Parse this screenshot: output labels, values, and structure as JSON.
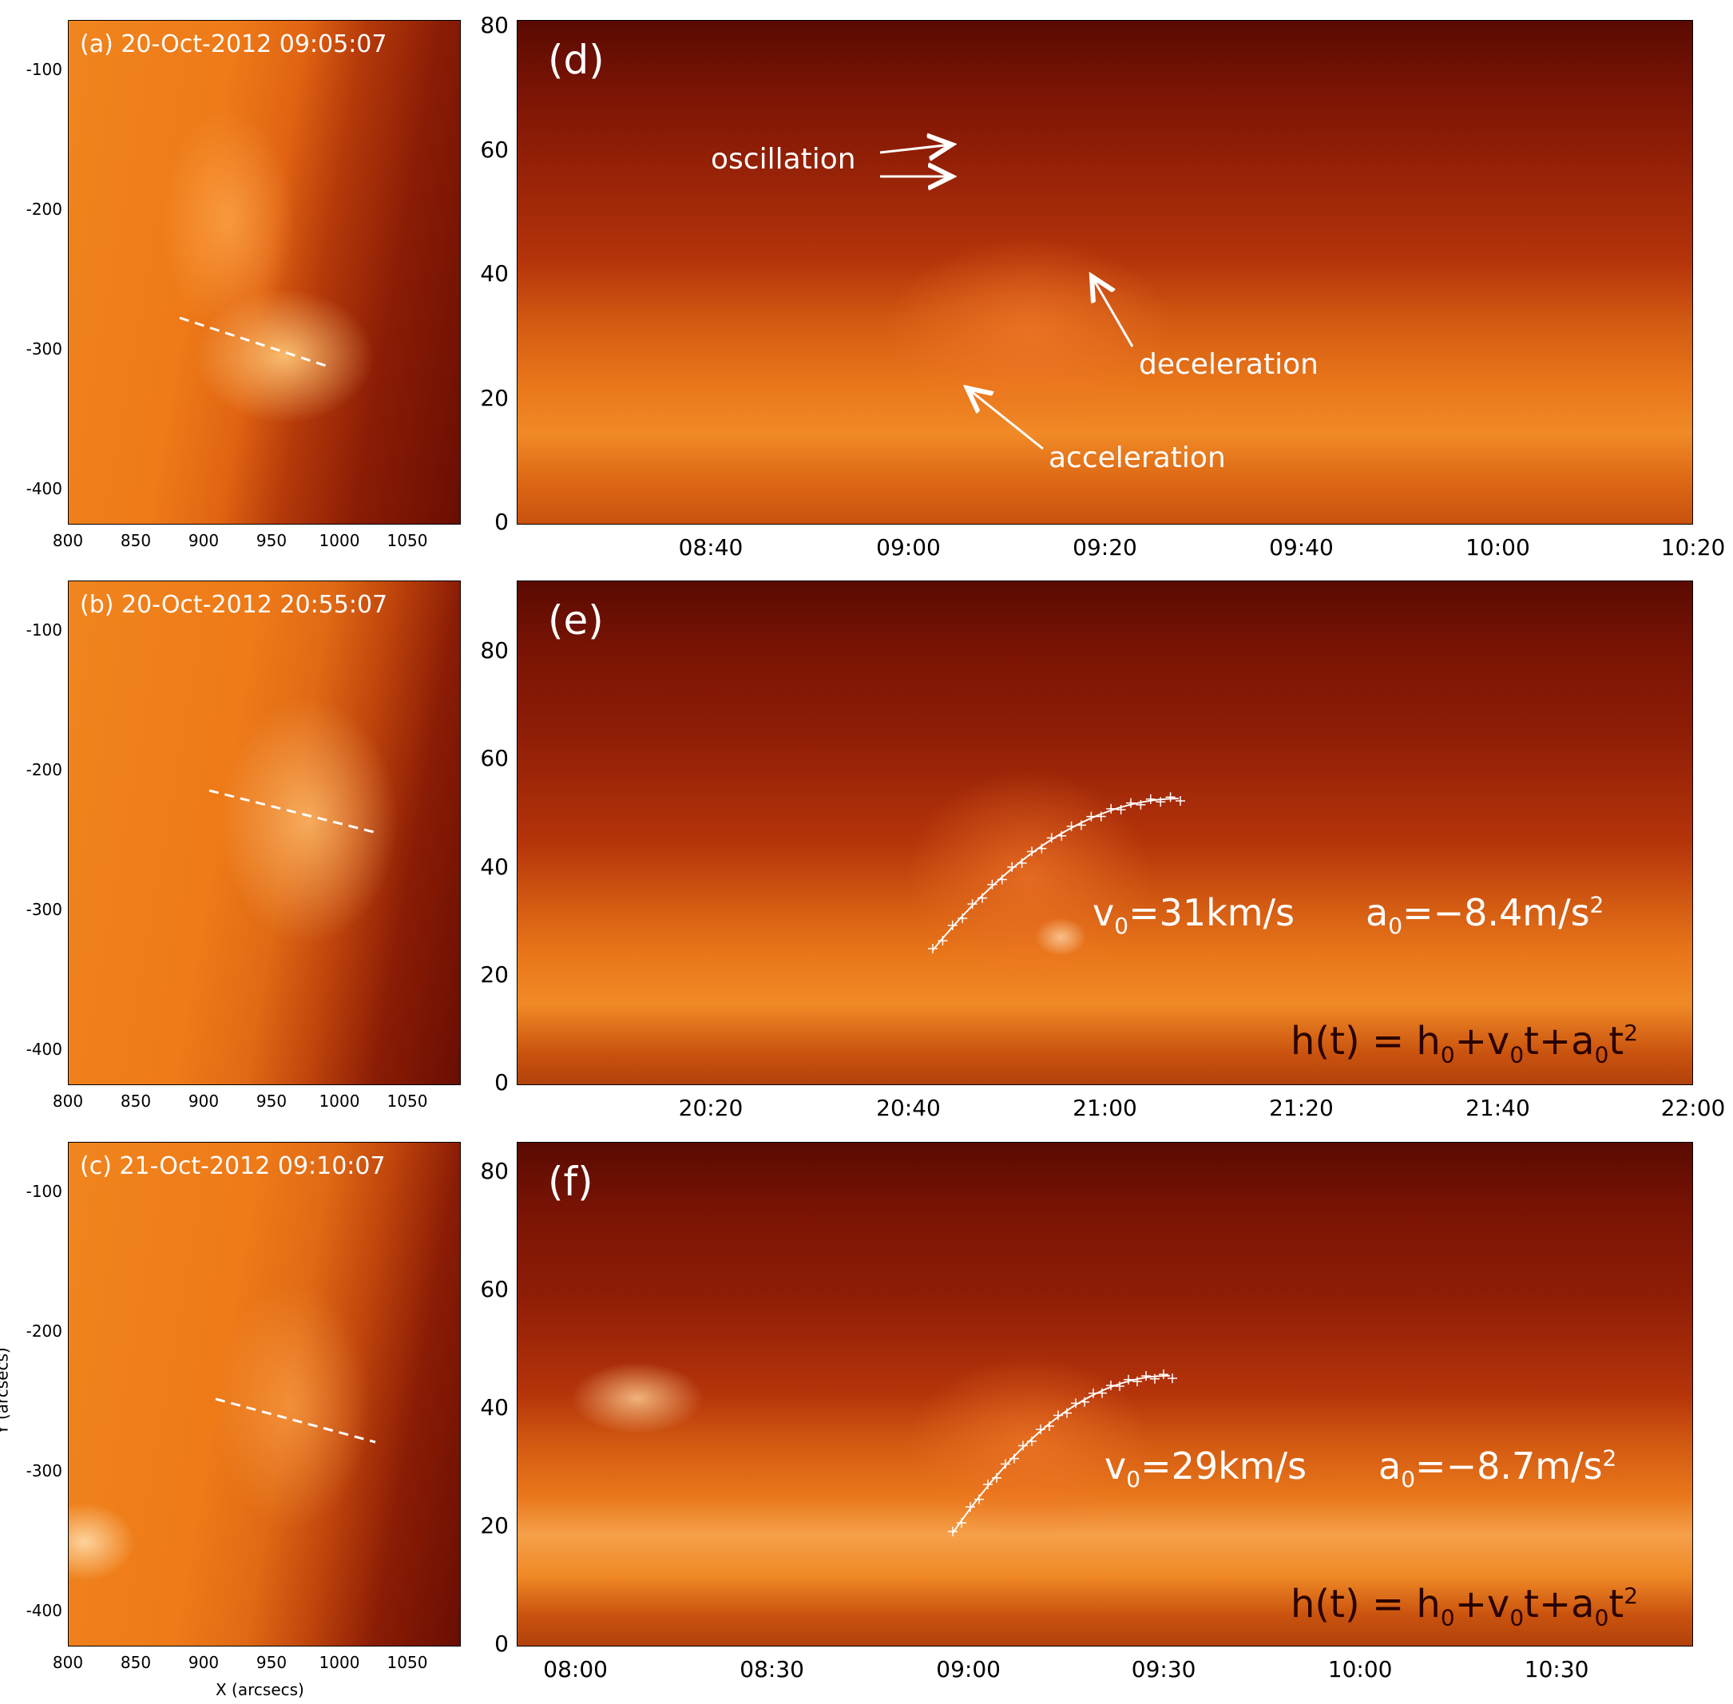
{
  "figure": {
    "images": [
      {
        "id": "a",
        "label": "(a) 20-Oct-2012 09:05:07"
      },
      {
        "id": "b",
        "label": "(b) 20-Oct-2012 20:55:07"
      },
      {
        "id": "c",
        "label": "(c) 21-Oct-2012 09:10:07"
      }
    ],
    "image_x_ticks": [
      "800",
      "850",
      "900",
      "950",
      "1000",
      "1050"
    ],
    "image_y_ticks": [
      "-100",
      "-200",
      "-300",
      "-400"
    ],
    "image_x_label": "X (arcsecs)",
    "image_y_label": "Y (arcsecs)",
    "timeslices": [
      {
        "id": "d",
        "label": "(d)",
        "y_ticks": [
          "80",
          "60",
          "40",
          "20",
          "0"
        ],
        "x_ticks": [
          "08:40",
          "09:00",
          "09:20",
          "09:40",
          "10:00",
          "10:20"
        ],
        "annotations": {
          "oscillation": "oscillation",
          "deceleration": "deceleration",
          "acceleration": "acceleration"
        }
      },
      {
        "id": "e",
        "label": "(e)",
        "y_ticks": [
          "80",
          "60",
          "40",
          "20",
          "0"
        ],
        "x_ticks": [
          "20:20",
          "20:40",
          "21:00",
          "21:20",
          "21:40",
          "22:00"
        ],
        "fit_v0": "v0=31km/s",
        "fit_a0": "a0=−8.4m/s2",
        "formula": "h(t) = h0+v0t+a0t2"
      },
      {
        "id": "f",
        "label": "(f)",
        "y_ticks": [
          "80",
          "60",
          "40",
          "20",
          "0"
        ],
        "x_ticks": [
          "08:00",
          "08:30",
          "09:00",
          "09:30",
          "10:00",
          "10:30"
        ],
        "fit_v0": "v0=29km/s",
        "fit_a0": "a0=−8.7m/s2",
        "formula": "h(t) = h0+v0t+a0t2"
      }
    ],
    "colors": {
      "dark": "#5a0a02",
      "mid": "#b52a08",
      "bright": "#f07a1a",
      "highlight": "#ffd08a"
    }
  },
  "chart_data": [
    {
      "type": "scatter",
      "panel": "e",
      "title": "",
      "xlabel": "",
      "ylabel": "",
      "ylim": [
        0,
        92
      ],
      "fit": "parabola",
      "fit_params": {
        "v0_km_s": 31,
        "a0_m_s2": -8.4
      }
    },
    {
      "type": "scatter",
      "panel": "f",
      "title": "",
      "xlabel": "",
      "ylabel": "",
      "ylim": [
        0,
        84
      ],
      "fit": "parabola",
      "fit_params": {
        "v0_km_s": 29,
        "a0_m_s2": -8.7
      }
    }
  ]
}
